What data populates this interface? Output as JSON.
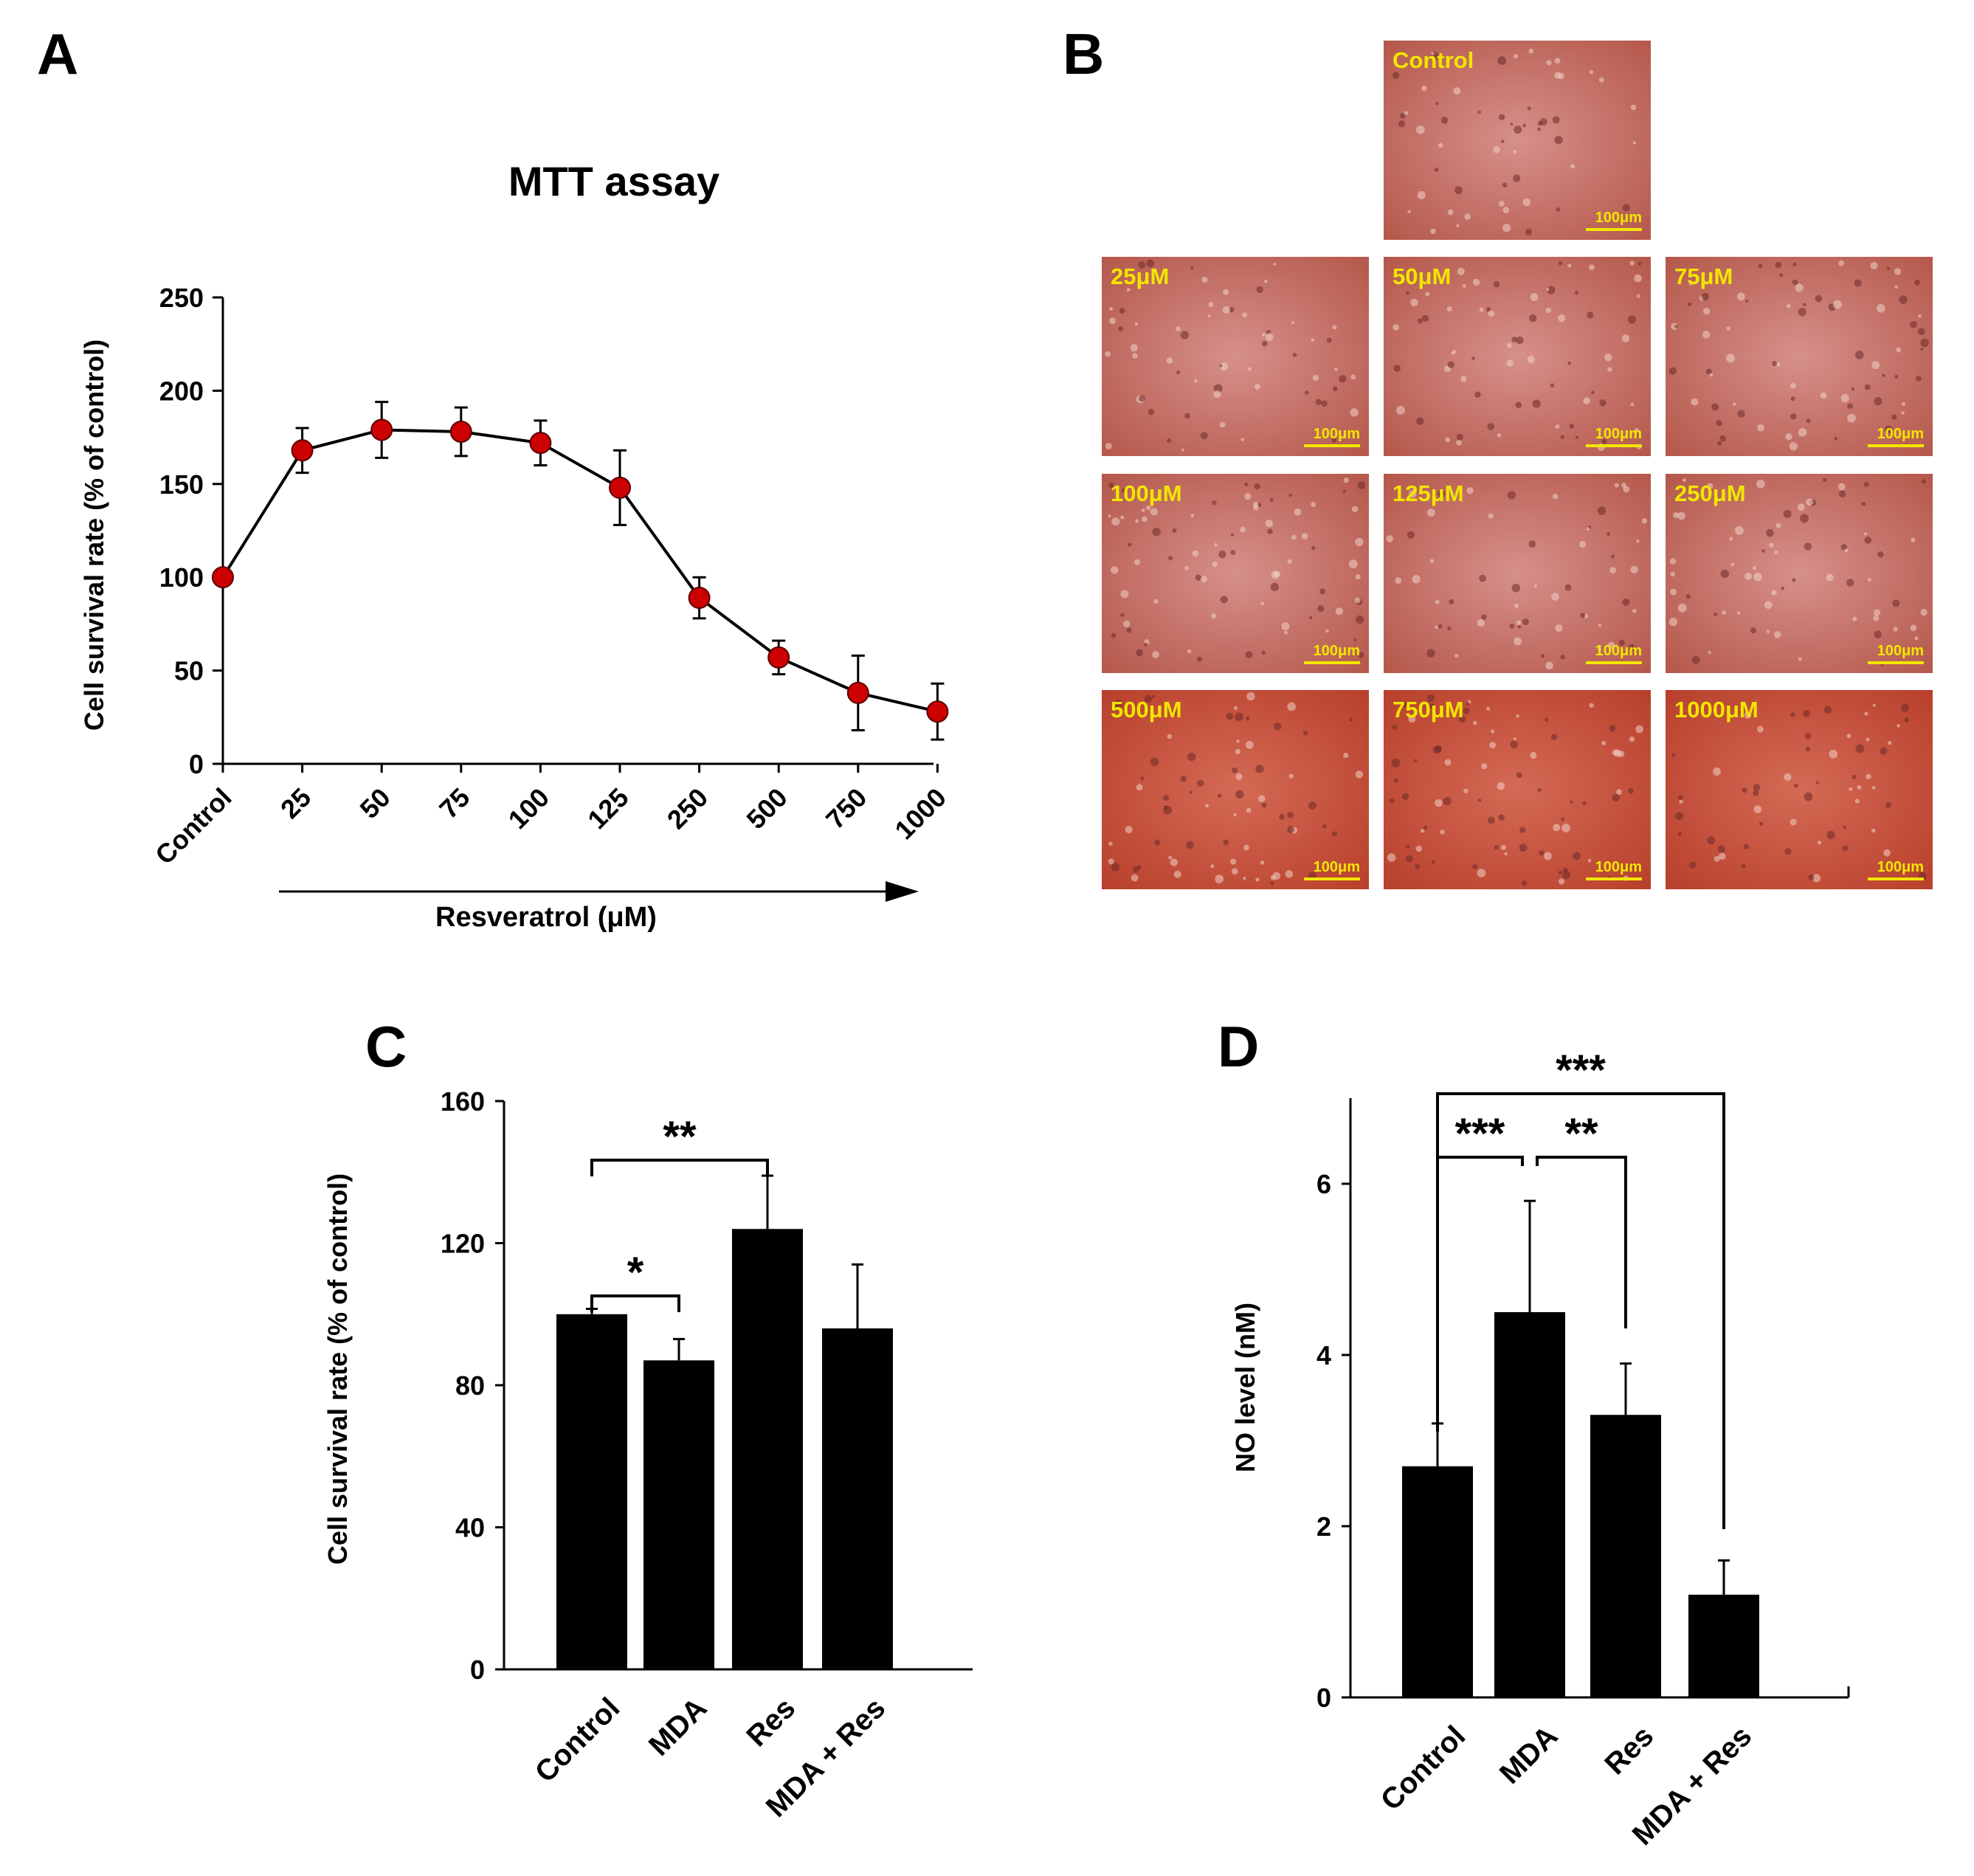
{
  "panel_letters": [
    "A",
    "B",
    "C",
    "D"
  ],
  "colors": {
    "marker": "#cc0000",
    "bar": "#000000",
    "micro_text": "#f2e600"
  },
  "chart_data": [
    {
      "id": "A",
      "type": "line",
      "title": "MTT assay",
      "xlabel": "Resveratrol (μM)",
      "ylabel": "Cell survival rate (% of control)",
      "categories": [
        "Control",
        "25",
        "50",
        "75",
        "100",
        "125",
        "250",
        "500",
        "750",
        "1000"
      ],
      "values": [
        100,
        168,
        179,
        178,
        172,
        148,
        89,
        57,
        38,
        28
      ],
      "errors": [
        0,
        12,
        15,
        13,
        12,
        20,
        11,
        9,
        20,
        15
      ],
      "yticks": [
        "0",
        "50",
        "100",
        "150",
        "200",
        "250"
      ],
      "ylim": [
        0,
        250
      ]
    },
    {
      "id": "C",
      "type": "bar",
      "ylabel": "Cell survival rate (% of control)",
      "categories": [
        "Control",
        "MDA",
        "Res",
        "MDA + Res"
      ],
      "values": [
        100,
        87,
        124,
        96
      ],
      "errors": [
        1.5,
        6,
        15,
        18
      ],
      "yticks": [
        "0",
        "40",
        "80",
        "120",
        "160"
      ],
      "ylim": [
        0,
        160
      ],
      "significance": [
        {
          "from": 0,
          "to": 1,
          "label": "*"
        },
        {
          "from": 0,
          "to": 2,
          "label": "**"
        }
      ]
    },
    {
      "id": "D",
      "type": "bar",
      "ylabel": "NO level (nM)",
      "categories": [
        "Control",
        "MDA",
        "Res",
        "MDA + Res"
      ],
      "values": [
        2.7,
        4.5,
        3.3,
        1.2
      ],
      "errors": [
        0.5,
        1.3,
        0.6,
        0.4
      ],
      "yticks": [
        "0",
        "2",
        "4",
        "6"
      ],
      "ylim": [
        0,
        7
      ],
      "significance": [
        {
          "from": 0,
          "to": 1,
          "label": "***"
        },
        {
          "from": 1,
          "to": 2,
          "label": "**"
        },
        {
          "from": 0,
          "to": 3,
          "label": "***"
        }
      ]
    }
  ],
  "micrographs": {
    "scale_bar": "100μm",
    "panels": [
      "Control",
      "25μM",
      "50μM",
      "75μM",
      "100μM",
      "125μM",
      "250μM",
      "500μM",
      "750μM",
      "1000μM"
    ]
  }
}
